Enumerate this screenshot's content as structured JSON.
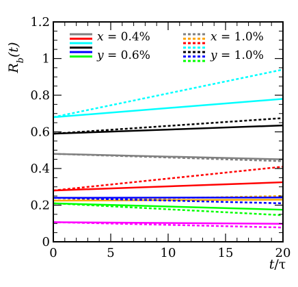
{
  "chart_data": {
    "type": "line",
    "xlabel": "t/τ",
    "ylabel": "R_b(t)",
    "xlim": [
      0,
      20
    ],
    "ylim": [
      0,
      1.2
    ],
    "xticks": [
      "0",
      "5",
      "10",
      "15",
      "20"
    ],
    "yticks": [
      "0",
      "0.2",
      "0.4",
      "0.6",
      "0.8",
      "1",
      "1.2"
    ],
    "grid": false,
    "legend": {
      "placement": "top",
      "left_header": {
        "var": "x",
        "val": " = 0.4%"
      },
      "left_footer": {
        "var": "y",
        "val": " = 0.6%"
      },
      "right_header": {
        "var": "x",
        "val": " = 1.0%"
      },
      "right_footer": {
        "var": "y",
        "val": " = 1.0%"
      }
    },
    "series": [
      {
        "color": "#00ffff",
        "style": "solid",
        "x": [
          0,
          20
        ],
        "values": [
          0.68,
          0.78
        ]
      },
      {
        "color": "#00ffff",
        "style": "dashed",
        "x": [
          0,
          20
        ],
        "values": [
          0.68,
          0.94
        ]
      },
      {
        "color": "#000000",
        "style": "solid",
        "x": [
          0,
          20
        ],
        "values": [
          0.59,
          0.635
        ]
      },
      {
        "color": "#000000",
        "style": "dashed",
        "x": [
          0,
          20
        ],
        "values": [
          0.59,
          0.675
        ]
      },
      {
        "color": "#808080",
        "style": "solid",
        "x": [
          0,
          20
        ],
        "values": [
          0.48,
          0.45
        ]
      },
      {
        "color": "#808080",
        "style": "dashed",
        "x": [
          0,
          20
        ],
        "values": [
          0.48,
          0.44
        ]
      },
      {
        "color": "#ff0000",
        "style": "solid",
        "x": [
          0,
          20
        ],
        "values": [
          0.28,
          0.325
        ]
      },
      {
        "color": "#ff0000",
        "style": "dashed",
        "x": [
          0,
          20
        ],
        "values": [
          0.28,
          0.41
        ]
      },
      {
        "color": "#ffa500",
        "style": "solid",
        "x": [
          0,
          20
        ],
        "values": [
          0.225,
          0.23
        ]
      },
      {
        "color": "#ffa500",
        "style": "dashed",
        "x": [
          0,
          20
        ],
        "values": [
          0.225,
          0.25
        ]
      },
      {
        "color": "#0000ff",
        "style": "solid",
        "x": [
          0,
          20
        ],
        "values": [
          0.24,
          0.242
        ]
      },
      {
        "color": "#0000ff",
        "style": "dashed",
        "x": [
          0,
          20
        ],
        "values": [
          0.24,
          0.21
        ]
      },
      {
        "color": "#00ff00",
        "style": "solid",
        "x": [
          0,
          20
        ],
        "values": [
          0.21,
          0.175
        ]
      },
      {
        "color": "#00ff00",
        "style": "dashed",
        "x": [
          0,
          20
        ],
        "values": [
          0.21,
          0.145
        ]
      },
      {
        "color": "#ff00ff",
        "style": "solid",
        "x": [
          0,
          20
        ],
        "values": [
          0.107,
          0.098
        ]
      },
      {
        "color": "#ff00ff",
        "style": "dashed",
        "x": [
          0,
          20
        ],
        "values": [
          0.107,
          0.078
        ]
      }
    ],
    "legend_left_colors": [
      "#808080",
      "#ff0000",
      "#00ffff",
      "#000000",
      "#0000ff",
      "#00ff00"
    ],
    "legend_right_colors": [
      "#808080",
      "#ffa500",
      "#ff0000",
      "#00ffff",
      "#000000",
      "#0000ff",
      "#00ff00"
    ]
  }
}
